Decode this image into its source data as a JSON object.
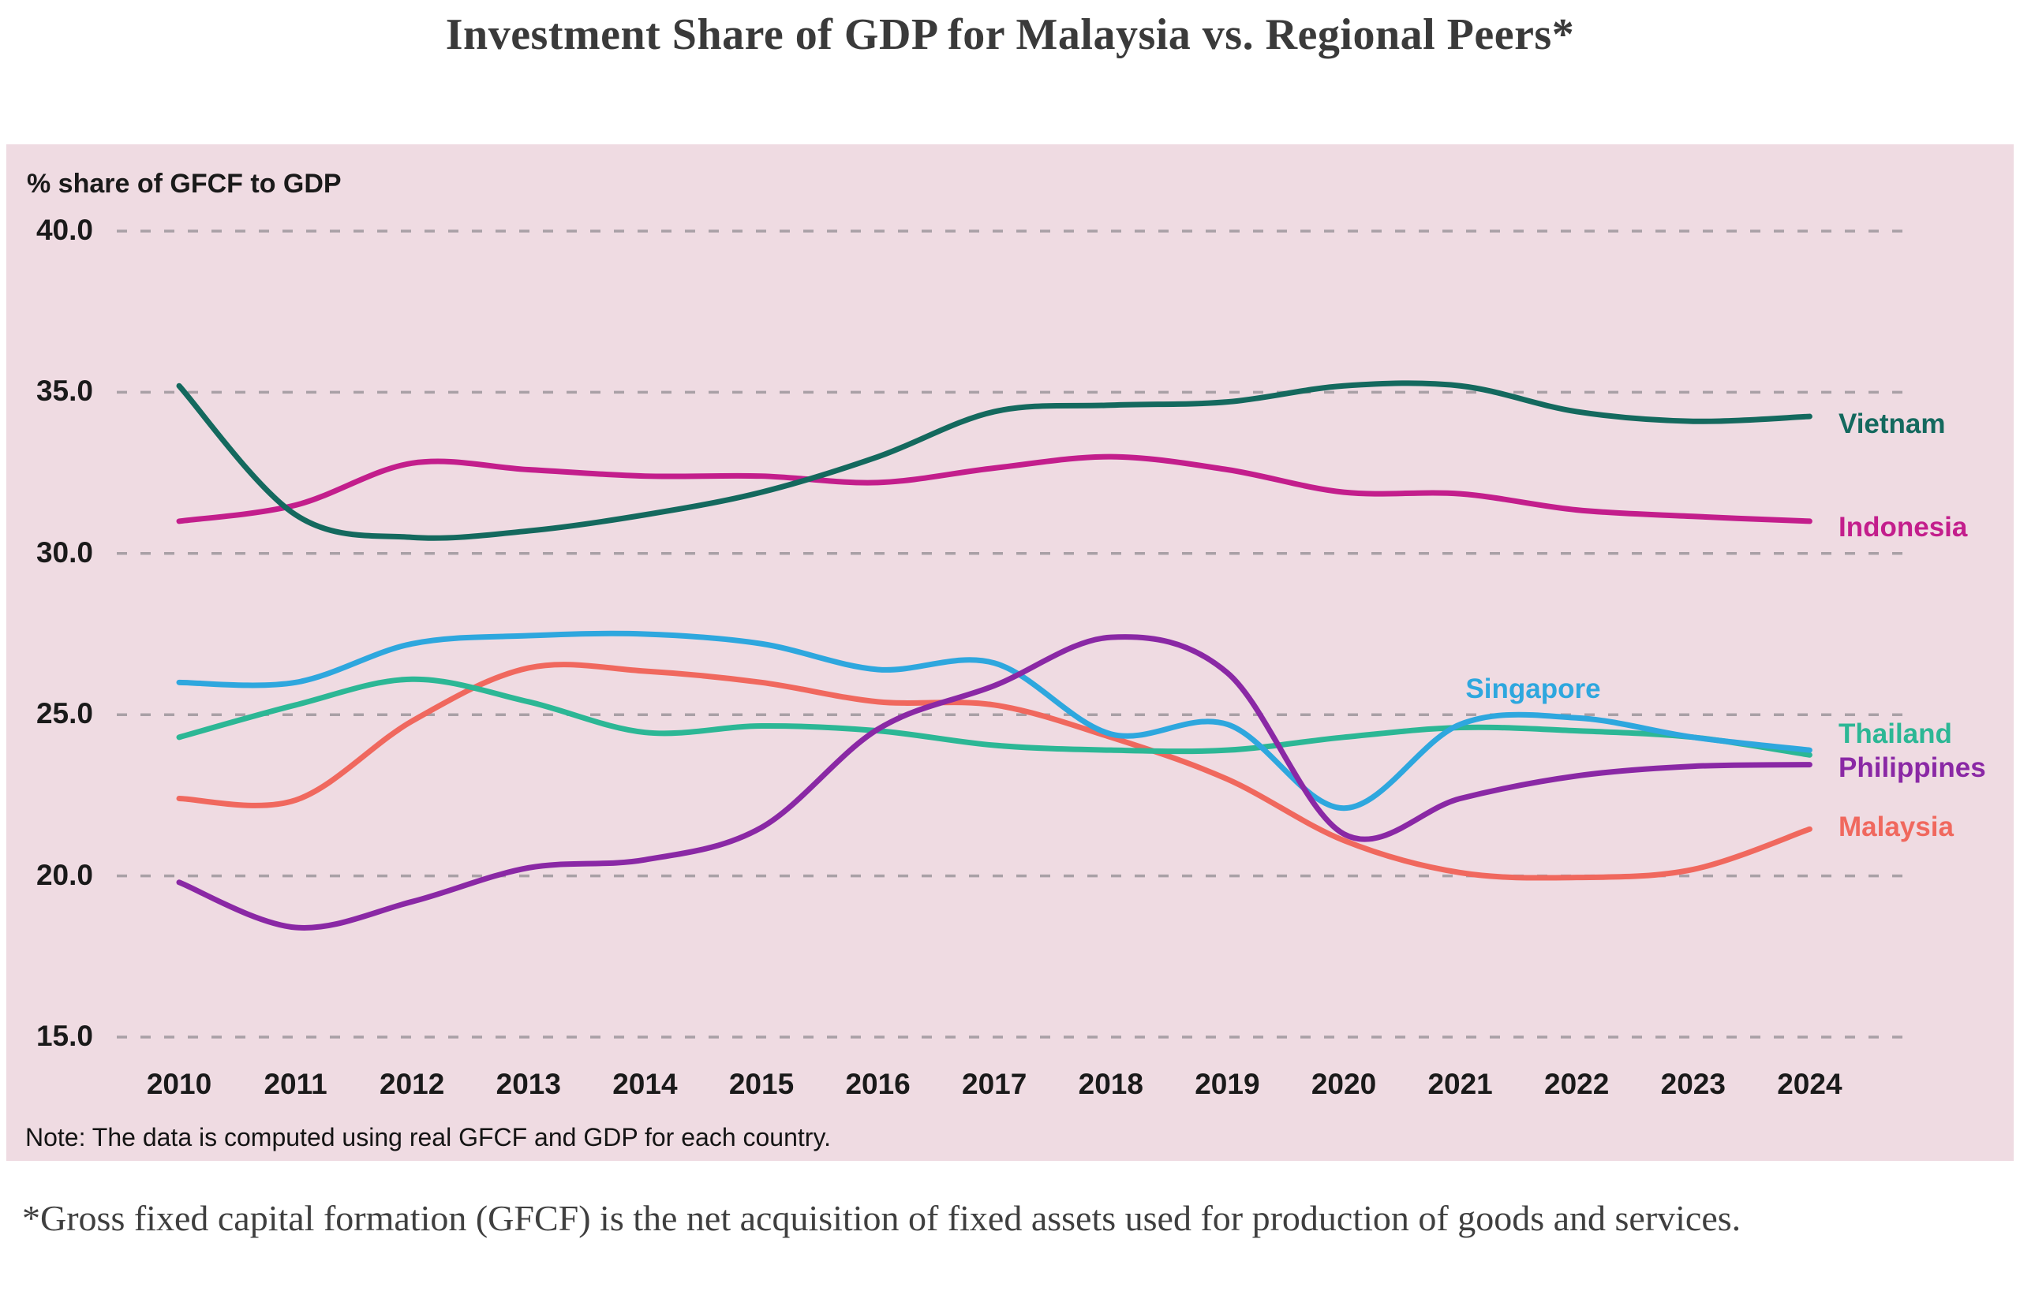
{
  "title": "Investment Share of GDP for Malaysia vs. Regional Peers*",
  "note": "Note: The data is computed using real GFCF and GDP for each country.",
  "footnote": "*Gross fixed capital formation (GFCF) is the net acquisition of fixed assets used for production of goods and services.",
  "panel_background": "#efdbe2",
  "gridline_color": "#a9a0a6",
  "chart_data": {
    "type": "line",
    "title": "Investment Share of GDP for Malaysia vs. Regional Peers*",
    "ylabel": "% share of GFCF to GDP",
    "xlabel": "",
    "ylim": [
      15,
      40
    ],
    "yticks": [
      40.0,
      35.0,
      30.0,
      25.0,
      20.0,
      15.0
    ],
    "grid": "horizontal-dashed",
    "legend_position": "right of line endpoints (Singapore labeled inline above its line)",
    "x": [
      2010,
      2011,
      2012,
      2013,
      2014,
      2015,
      2016,
      2017,
      2018,
      2019,
      2020,
      2021,
      2022,
      2023,
      2024
    ],
    "series": [
      {
        "name": "Vietnam",
        "color": "#14695e",
        "values": [
          35.2,
          31.2,
          30.5,
          30.7,
          31.2,
          31.9,
          33.0,
          34.4,
          34.6,
          34.7,
          35.2,
          35.2,
          34.4,
          34.1,
          34.25
        ]
      },
      {
        "name": "Indonesia",
        "color": "#c31e8c",
        "values": [
          31.0,
          31.5,
          32.8,
          32.6,
          32.4,
          32.4,
          32.2,
          32.65,
          33.0,
          32.6,
          31.9,
          31.85,
          31.35,
          31.15,
          31.0
        ]
      },
      {
        "name": "Singapore",
        "color": "#2ea7de",
        "values": [
          26.0,
          26.0,
          27.2,
          27.45,
          27.5,
          27.2,
          26.4,
          26.6,
          24.4,
          24.7,
          22.1,
          24.7,
          24.9,
          24.3,
          23.9
        ]
      },
      {
        "name": "Thailand",
        "color": "#2cb795",
        "values": [
          24.3,
          25.3,
          26.1,
          25.4,
          24.45,
          24.65,
          24.5,
          24.05,
          23.9,
          23.9,
          24.3,
          24.6,
          24.5,
          24.3,
          23.75
        ]
      },
      {
        "name": "Philippines",
        "color": "#8a28a5",
        "values": [
          19.8,
          18.4,
          19.2,
          20.25,
          20.5,
          21.5,
          24.55,
          25.9,
          27.4,
          26.3,
          21.3,
          22.4,
          23.1,
          23.4,
          23.45
        ]
      },
      {
        "name": "Malaysia",
        "color": "#f0685e",
        "values": [
          22.4,
          22.35,
          24.8,
          26.45,
          26.35,
          26.0,
          25.4,
          25.3,
          24.3,
          23.0,
          21.1,
          20.1,
          19.95,
          20.2,
          21.45
        ]
      }
    ]
  }
}
